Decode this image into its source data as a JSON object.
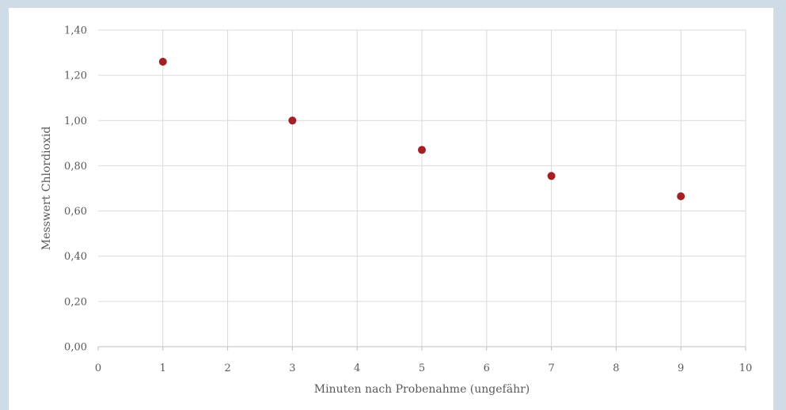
{
  "chart_data": {
    "type": "scatter",
    "title": "",
    "xlabel": "Minuten nach Probenahme (ungefähr)",
    "ylabel": "Messwert Chlordioxid",
    "xlim": [
      0,
      10
    ],
    "ylim": [
      0,
      1.4
    ],
    "x_ticks": [
      "0",
      "1",
      "2",
      "3",
      "4",
      "5",
      "6",
      "7",
      "8",
      "9",
      "10"
    ],
    "y_ticks": [
      "0,00",
      "0,20",
      "0,40",
      "0,60",
      "0,80",
      "1,00",
      "1,20",
      "1,40"
    ],
    "grid": true,
    "series": [
      {
        "color": "#a31f24",
        "x": [
          1,
          3,
          5,
          7,
          9
        ],
        "y": [
          1.26,
          1.0,
          0.87,
          0.755,
          0.665
        ]
      }
    ]
  }
}
